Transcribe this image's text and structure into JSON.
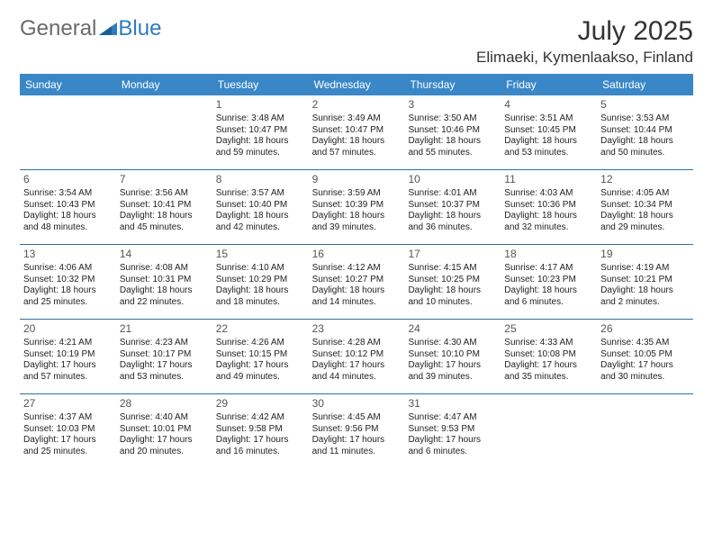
{
  "brand": {
    "part1": "General",
    "part2": "Blue"
  },
  "header": {
    "title": "July 2025",
    "location": "Elimaeki, Kymenlaakso, Finland"
  },
  "accent_color": "#3a87c7",
  "rule_color": "#2f6fa3",
  "daynames": [
    "Sunday",
    "Monday",
    "Tuesday",
    "Wednesday",
    "Thursday",
    "Friday",
    "Saturday"
  ],
  "weeks": [
    [
      null,
      null,
      {
        "n": "1",
        "sr": "Sunrise: 3:48 AM",
        "ss": "Sunset: 10:47 PM",
        "d1": "Daylight: 18 hours",
        "d2": "and 59 minutes."
      },
      {
        "n": "2",
        "sr": "Sunrise: 3:49 AM",
        "ss": "Sunset: 10:47 PM",
        "d1": "Daylight: 18 hours",
        "d2": "and 57 minutes."
      },
      {
        "n": "3",
        "sr": "Sunrise: 3:50 AM",
        "ss": "Sunset: 10:46 PM",
        "d1": "Daylight: 18 hours",
        "d2": "and 55 minutes."
      },
      {
        "n": "4",
        "sr": "Sunrise: 3:51 AM",
        "ss": "Sunset: 10:45 PM",
        "d1": "Daylight: 18 hours",
        "d2": "and 53 minutes."
      },
      {
        "n": "5",
        "sr": "Sunrise: 3:53 AM",
        "ss": "Sunset: 10:44 PM",
        "d1": "Daylight: 18 hours",
        "d2": "and 50 minutes."
      }
    ],
    [
      {
        "n": "6",
        "sr": "Sunrise: 3:54 AM",
        "ss": "Sunset: 10:43 PM",
        "d1": "Daylight: 18 hours",
        "d2": "and 48 minutes."
      },
      {
        "n": "7",
        "sr": "Sunrise: 3:56 AM",
        "ss": "Sunset: 10:41 PM",
        "d1": "Daylight: 18 hours",
        "d2": "and 45 minutes."
      },
      {
        "n": "8",
        "sr": "Sunrise: 3:57 AM",
        "ss": "Sunset: 10:40 PM",
        "d1": "Daylight: 18 hours",
        "d2": "and 42 minutes."
      },
      {
        "n": "9",
        "sr": "Sunrise: 3:59 AM",
        "ss": "Sunset: 10:39 PM",
        "d1": "Daylight: 18 hours",
        "d2": "and 39 minutes."
      },
      {
        "n": "10",
        "sr": "Sunrise: 4:01 AM",
        "ss": "Sunset: 10:37 PM",
        "d1": "Daylight: 18 hours",
        "d2": "and 36 minutes."
      },
      {
        "n": "11",
        "sr": "Sunrise: 4:03 AM",
        "ss": "Sunset: 10:36 PM",
        "d1": "Daylight: 18 hours",
        "d2": "and 32 minutes."
      },
      {
        "n": "12",
        "sr": "Sunrise: 4:05 AM",
        "ss": "Sunset: 10:34 PM",
        "d1": "Daylight: 18 hours",
        "d2": "and 29 minutes."
      }
    ],
    [
      {
        "n": "13",
        "sr": "Sunrise: 4:06 AM",
        "ss": "Sunset: 10:32 PM",
        "d1": "Daylight: 18 hours",
        "d2": "and 25 minutes."
      },
      {
        "n": "14",
        "sr": "Sunrise: 4:08 AM",
        "ss": "Sunset: 10:31 PM",
        "d1": "Daylight: 18 hours",
        "d2": "and 22 minutes."
      },
      {
        "n": "15",
        "sr": "Sunrise: 4:10 AM",
        "ss": "Sunset: 10:29 PM",
        "d1": "Daylight: 18 hours",
        "d2": "and 18 minutes."
      },
      {
        "n": "16",
        "sr": "Sunrise: 4:12 AM",
        "ss": "Sunset: 10:27 PM",
        "d1": "Daylight: 18 hours",
        "d2": "and 14 minutes."
      },
      {
        "n": "17",
        "sr": "Sunrise: 4:15 AM",
        "ss": "Sunset: 10:25 PM",
        "d1": "Daylight: 18 hours",
        "d2": "and 10 minutes."
      },
      {
        "n": "18",
        "sr": "Sunrise: 4:17 AM",
        "ss": "Sunset: 10:23 PM",
        "d1": "Daylight: 18 hours",
        "d2": "and 6 minutes."
      },
      {
        "n": "19",
        "sr": "Sunrise: 4:19 AM",
        "ss": "Sunset: 10:21 PM",
        "d1": "Daylight: 18 hours",
        "d2": "and 2 minutes."
      }
    ],
    [
      {
        "n": "20",
        "sr": "Sunrise: 4:21 AM",
        "ss": "Sunset: 10:19 PM",
        "d1": "Daylight: 17 hours",
        "d2": "and 57 minutes."
      },
      {
        "n": "21",
        "sr": "Sunrise: 4:23 AM",
        "ss": "Sunset: 10:17 PM",
        "d1": "Daylight: 17 hours",
        "d2": "and 53 minutes."
      },
      {
        "n": "22",
        "sr": "Sunrise: 4:26 AM",
        "ss": "Sunset: 10:15 PM",
        "d1": "Daylight: 17 hours",
        "d2": "and 49 minutes."
      },
      {
        "n": "23",
        "sr": "Sunrise: 4:28 AM",
        "ss": "Sunset: 10:12 PM",
        "d1": "Daylight: 17 hours",
        "d2": "and 44 minutes."
      },
      {
        "n": "24",
        "sr": "Sunrise: 4:30 AM",
        "ss": "Sunset: 10:10 PM",
        "d1": "Daylight: 17 hours",
        "d2": "and 39 minutes."
      },
      {
        "n": "25",
        "sr": "Sunrise: 4:33 AM",
        "ss": "Sunset: 10:08 PM",
        "d1": "Daylight: 17 hours",
        "d2": "and 35 minutes."
      },
      {
        "n": "26",
        "sr": "Sunrise: 4:35 AM",
        "ss": "Sunset: 10:05 PM",
        "d1": "Daylight: 17 hours",
        "d2": "and 30 minutes."
      }
    ],
    [
      {
        "n": "27",
        "sr": "Sunrise: 4:37 AM",
        "ss": "Sunset: 10:03 PM",
        "d1": "Daylight: 17 hours",
        "d2": "and 25 minutes."
      },
      {
        "n": "28",
        "sr": "Sunrise: 4:40 AM",
        "ss": "Sunset: 10:01 PM",
        "d1": "Daylight: 17 hours",
        "d2": "and 20 minutes."
      },
      {
        "n": "29",
        "sr": "Sunrise: 4:42 AM",
        "ss": "Sunset: 9:58 PM",
        "d1": "Daylight: 17 hours",
        "d2": "and 16 minutes."
      },
      {
        "n": "30",
        "sr": "Sunrise: 4:45 AM",
        "ss": "Sunset: 9:56 PM",
        "d1": "Daylight: 17 hours",
        "d2": "and 11 minutes."
      },
      {
        "n": "31",
        "sr": "Sunrise: 4:47 AM",
        "ss": "Sunset: 9:53 PM",
        "d1": "Daylight: 17 hours",
        "d2": "and 6 minutes."
      },
      null,
      null
    ]
  ]
}
